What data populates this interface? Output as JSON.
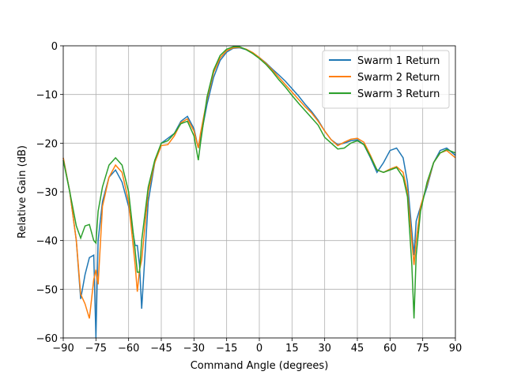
{
  "chart_data": {
    "type": "line",
    "xlabel": "Command Angle (degrees)",
    "ylabel": "Relative Gain (dB)",
    "x": [
      -90,
      -87,
      -84,
      -82,
      -80,
      -78,
      -76,
      -75,
      -74,
      -72,
      -69,
      -66,
      -63,
      -60,
      -57,
      -56,
      -55,
      -54,
      -51,
      -48,
      -45,
      -42,
      -39,
      -36,
      -33,
      -30,
      -28,
      -27,
      -24,
      -21,
      -18,
      -15,
      -12,
      -9,
      -6,
      -3,
      0,
      3,
      6,
      9,
      12,
      15,
      18,
      21,
      24,
      27,
      30,
      33,
      36,
      39,
      42,
      45,
      48,
      51,
      54,
      57,
      60,
      63,
      66,
      68,
      70,
      71,
      72,
      74,
      77,
      80,
      83,
      86,
      90
    ],
    "series": [
      {
        "name": "Swarm 1 Return",
        "color": "#1f77b4",
        "values": [
          -23,
          -30,
          -40,
          -52,
          -47,
          -43.5,
          -43,
          -60,
          -40,
          -32,
          -27,
          -25.5,
          -28,
          -33,
          -41,
          -41,
          -45,
          -54,
          -32,
          -24,
          -20,
          -19,
          -18,
          -15.5,
          -14.5,
          -17,
          -21,
          -19,
          -12,
          -6.5,
          -3,
          -1.3,
          -0.5,
          -0.4,
          -0.8,
          -1.5,
          -2.4,
          -3.5,
          -4.8,
          -6,
          -7.3,
          -8.8,
          -10.3,
          -12,
          -13.5,
          -15.3,
          -17.5,
          -19.3,
          -20.3,
          -20,
          -19.5,
          -19.3,
          -20.3,
          -23,
          -26,
          -24,
          -21.5,
          -21,
          -23,
          -28,
          -38,
          -43,
          -36,
          -33,
          -29,
          -24,
          -21.5,
          -21,
          -22.5
        ]
      },
      {
        "name": "Swarm 2 Return",
        "color": "#ff7f0e",
        "values": [
          -23,
          -30,
          -40,
          -51,
          -53,
          -56,
          -48,
          -46,
          -49,
          -33,
          -27,
          -24.5,
          -26,
          -32,
          -45,
          -50.5,
          -46,
          -44,
          -30,
          -24,
          -20.5,
          -20.3,
          -18.5,
          -15.8,
          -15,
          -17.5,
          -21,
          -18,
          -11,
          -5.5,
          -2.5,
          -1,
          -0.4,
          -0.3,
          -0.7,
          -1.4,
          -2.4,
          -3.6,
          -5,
          -6.5,
          -8,
          -9.5,
          -11,
          -12.5,
          -13.8,
          -15.5,
          -17.5,
          -19.3,
          -20.5,
          -19.8,
          -19.2,
          -19,
          -19.8,
          -22.5,
          -25.5,
          -26,
          -25.3,
          -24.8,
          -26,
          -30,
          -40,
          -45,
          -40,
          -33,
          -28.5,
          -24,
          -22,
          -21.5,
          -23
        ]
      },
      {
        "name": "Swarm 3 Return",
        "color": "#2ca02c",
        "values": [
          -23.5,
          -30,
          -37,
          -39.5,
          -37,
          -36.7,
          -40,
          -40.5,
          -34,
          -29,
          -24.5,
          -23,
          -24.5,
          -30,
          -42,
          -46.5,
          -46.5,
          -40,
          -29,
          -23.5,
          -20,
          -19.5,
          -18,
          -16,
          -15.5,
          -18.5,
          -23.5,
          -20,
          -10.5,
          -5,
          -2,
          -0.7,
          -0.2,
          -0.2,
          -0.8,
          -1.6,
          -2.6,
          -3.8,
          -5.3,
          -7,
          -8.5,
          -10.2,
          -11.8,
          -13.3,
          -14.8,
          -16.3,
          -18.8,
          -20,
          -21.2,
          -21,
          -20,
          -19.5,
          -20.3,
          -22.8,
          -25.5,
          -26,
          -25.5,
          -25,
          -27,
          -31,
          -45,
          -56,
          -43,
          -34,
          -28,
          -24,
          -22,
          -21.3,
          -22
        ]
      }
    ],
    "xlim": [
      -90,
      90
    ],
    "xticks": [
      {
        "value": -90,
        "label": "−90"
      },
      {
        "value": -75,
        "label": "−75"
      },
      {
        "value": -60,
        "label": "−60"
      },
      {
        "value": -45,
        "label": "−45"
      },
      {
        "value": -30,
        "label": "−30"
      },
      {
        "value": -15,
        "label": "−15"
      },
      0,
      15,
      30,
      45,
      60,
      75,
      90
    ],
    "ylim": [
      -60,
      0
    ],
    "yticks": [
      {
        "value": -60,
        "label": "−60"
      },
      {
        "value": -50,
        "label": "−50"
      },
      {
        "value": -40,
        "label": "−40"
      },
      {
        "value": -30,
        "label": "−30"
      },
      {
        "value": -20,
        "label": "−20"
      },
      {
        "value": -10,
        "label": "−10"
      },
      0
    ],
    "grid": true,
    "legend": "upper-right"
  }
}
